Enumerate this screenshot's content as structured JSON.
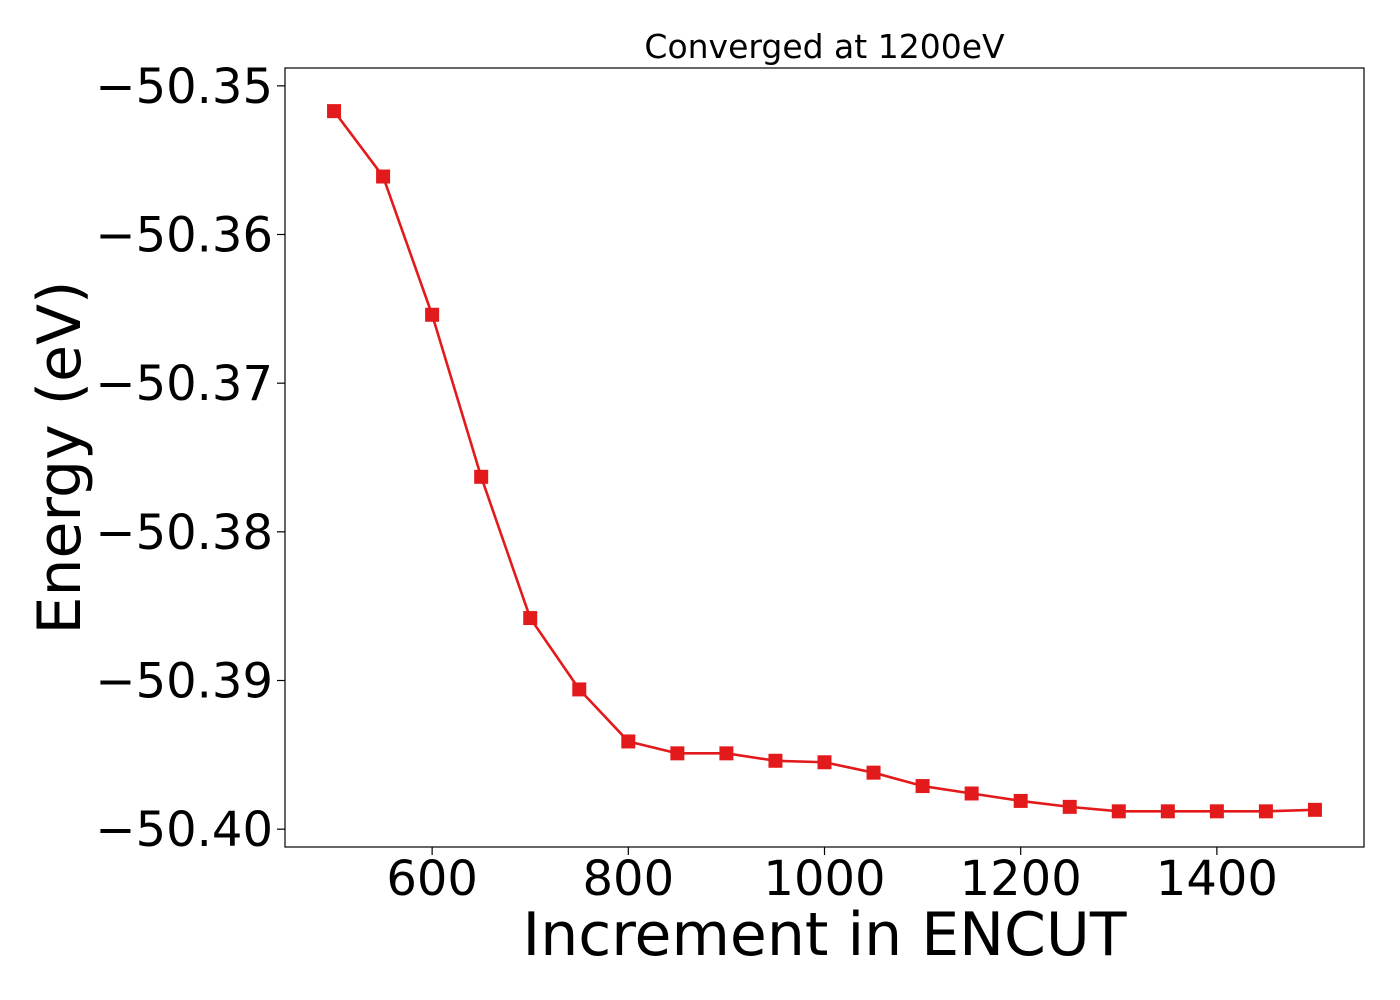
{
  "chart_data": {
    "type": "line",
    "title": "Converged at 1200eV",
    "xlabel": "Increment in ENCUT",
    "ylabel": "Energy (eV)",
    "xlim": [
      450,
      1550
    ],
    "ylim": [
      -50.4012,
      -50.3488
    ],
    "x_ticks": [
      600,
      800,
      1000,
      1200,
      1400
    ],
    "x_tick_labels": [
      "600",
      "800",
      "1000",
      "1200",
      "1400"
    ],
    "y_ticks": [
      -50.35,
      -50.36,
      -50.37,
      -50.38,
      -50.39,
      -50.4
    ],
    "y_tick_labels": [
      "−50.35",
      "−50.36",
      "−50.37",
      "−50.38",
      "−50.39",
      "−50.40"
    ],
    "grid": false,
    "series": [
      {
        "color": "#e31a1c",
        "marker": "square",
        "x": [
          500,
          550,
          600,
          650,
          700,
          750,
          800,
          850,
          900,
          950,
          1000,
          1050,
          1100,
          1150,
          1200,
          1250,
          1300,
          1350,
          1400,
          1450,
          1500
        ],
        "y": [
          -50.3517,
          -50.3561,
          -50.3654,
          -50.3763,
          -50.3858,
          -50.3906,
          -50.3941,
          -50.3949,
          -50.3949,
          -50.3954,
          -50.3955,
          -50.3962,
          -50.3971,
          -50.3976,
          -50.3981,
          -50.3985,
          -50.3988,
          -50.3988,
          -50.3988,
          -50.3988,
          -50.3987
        ]
      }
    ]
  }
}
